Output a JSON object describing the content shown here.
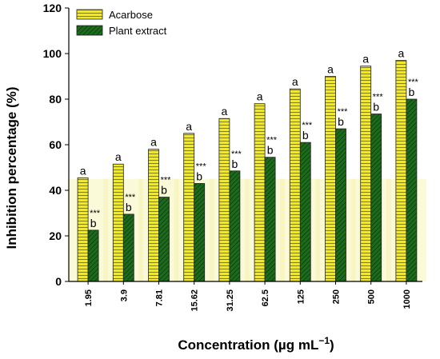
{
  "chart_data": {
    "type": "bar",
    "title": "",
    "xlabel": "Concentration (µg mL",
    "xlabel_sup": "−1",
    "xlabel_close": ")",
    "ylabel": "Inhibition percentage (%)",
    "ylim": [
      0,
      120
    ],
    "yticks": [
      0,
      20,
      40,
      60,
      80,
      100,
      120
    ],
    "grid": false,
    "legend_position": "top-left",
    "categories": [
      "1.95",
      "3.9",
      "7.81",
      "15.62",
      "31.25",
      "62.5",
      "125",
      "250",
      "500",
      "1000"
    ],
    "series": [
      {
        "name": "Acarbose",
        "color": "#f2ea1a",
        "hatch": "horizontal",
        "values": [
          45.5,
          51.5,
          58,
          65,
          71.5,
          78,
          84.5,
          90,
          94.5,
          97
        ],
        "labels": [
          "a",
          "a",
          "a",
          "a",
          "a",
          "a",
          "a",
          "a",
          "a",
          "a"
        ]
      },
      {
        "name": "Plant extract",
        "color": "#1c6b1c",
        "hatch": "diagonal",
        "values": [
          22.5,
          29.5,
          37,
          43,
          48.5,
          54.5,
          61,
          67,
          73.5,
          80
        ],
        "labels": [
          "b",
          "b",
          "b",
          "b",
          "b",
          "b",
          "b",
          "b",
          "b",
          "b"
        ],
        "significance": [
          "***",
          "***",
          "***",
          "***",
          "***",
          "***",
          "***",
          "***",
          "***",
          "***"
        ]
      }
    ],
    "background_band": {
      "value": 45,
      "color": "#f4f2a8"
    }
  }
}
